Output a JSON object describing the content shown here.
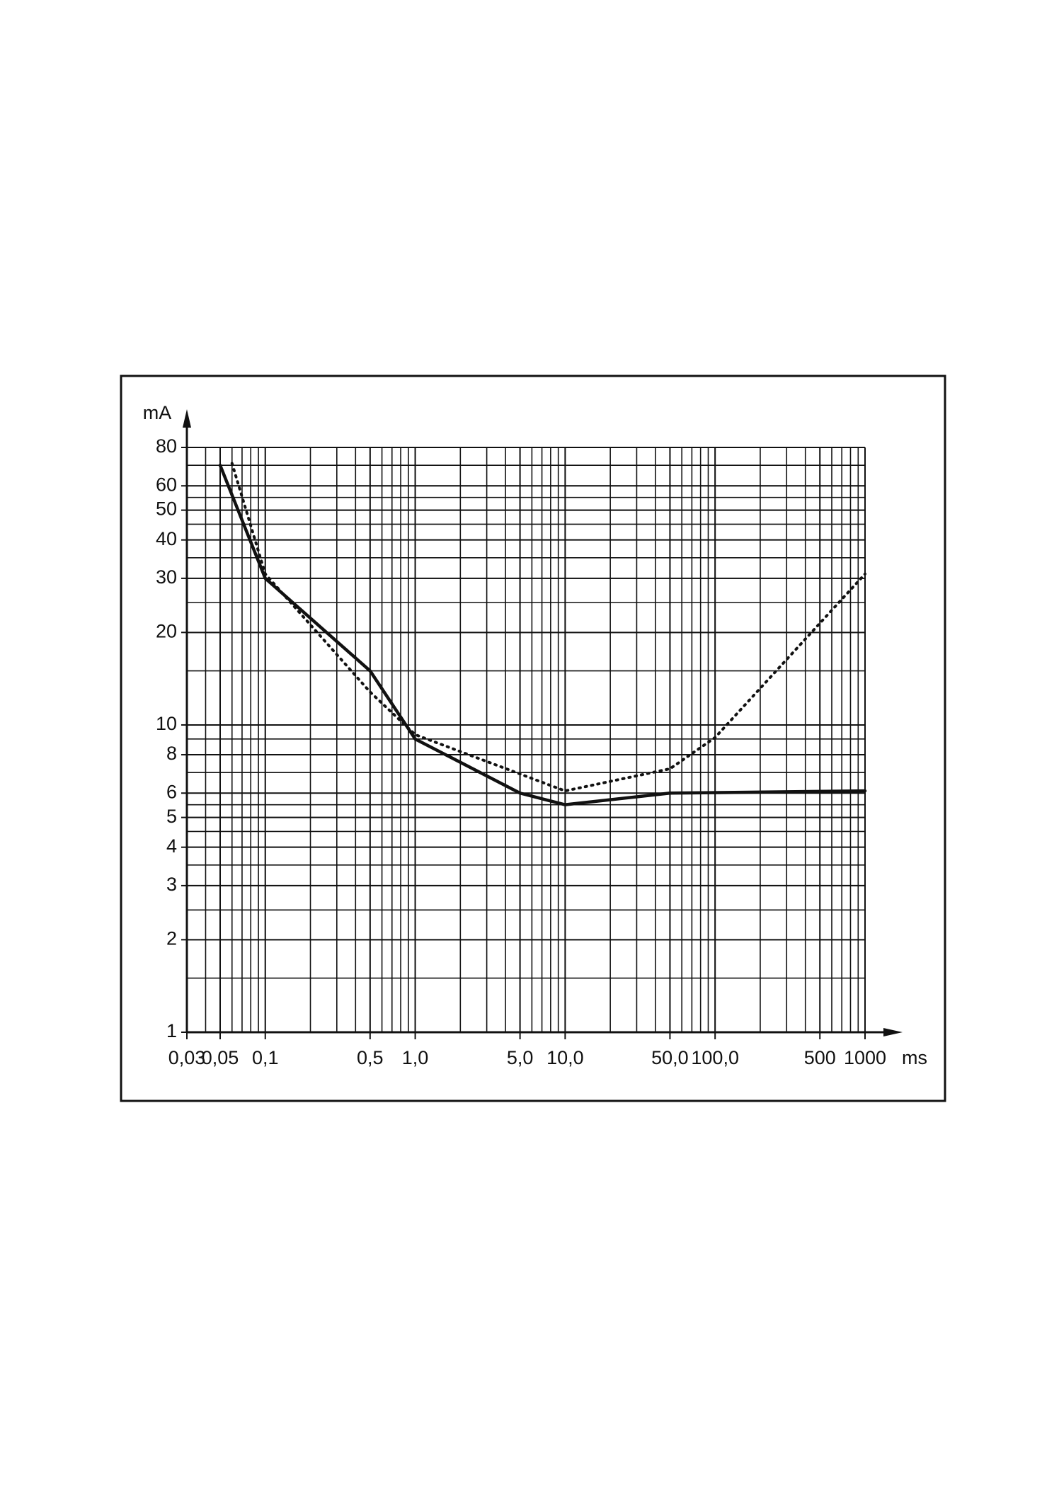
{
  "chart_data": {
    "type": "line",
    "x_label": "ms",
    "y_label": "mA",
    "xscale": "log",
    "yscale": "log",
    "xlim": [
      0.03,
      1000
    ],
    "ylim": [
      1,
      80
    ],
    "xticks": [
      {
        "value": 0.03,
        "label": "0,03"
      },
      {
        "value": 0.05,
        "label": "0,05"
      },
      {
        "value": 0.1,
        "label": "0,1"
      },
      {
        "value": 0.5,
        "label": "0,5"
      },
      {
        "value": 1,
        "label": "1,0"
      },
      {
        "value": 5,
        "label": "5,0"
      },
      {
        "value": 10,
        "label": "10,0"
      },
      {
        "value": 50,
        "label": "50,0"
      },
      {
        "value": 100,
        "label": "100,0"
      },
      500,
      1000
    ],
    "yticks": [
      1,
      2,
      3,
      4,
      5,
      6,
      8,
      10,
      20,
      30,
      40,
      50,
      60,
      80
    ],
    "grid": true,
    "series": [
      {
        "color": "#111111",
        "style": "solid",
        "x": [
          0.05,
          0.1,
          0.5,
          1,
          5,
          10,
          50,
          1000
        ],
        "values": [
          70,
          30,
          15,
          9,
          6,
          5.5,
          6,
          6.1
        ]
      },
      {
        "color": "#111111",
        "style": "dotted",
        "x": [
          0.06,
          0.1,
          0.5,
          1,
          10,
          50,
          100,
          1000
        ],
        "values": [
          71,
          31,
          12.8,
          9.3,
          6.1,
          7.2,
          9.1,
          31
        ]
      }
    ]
  }
}
